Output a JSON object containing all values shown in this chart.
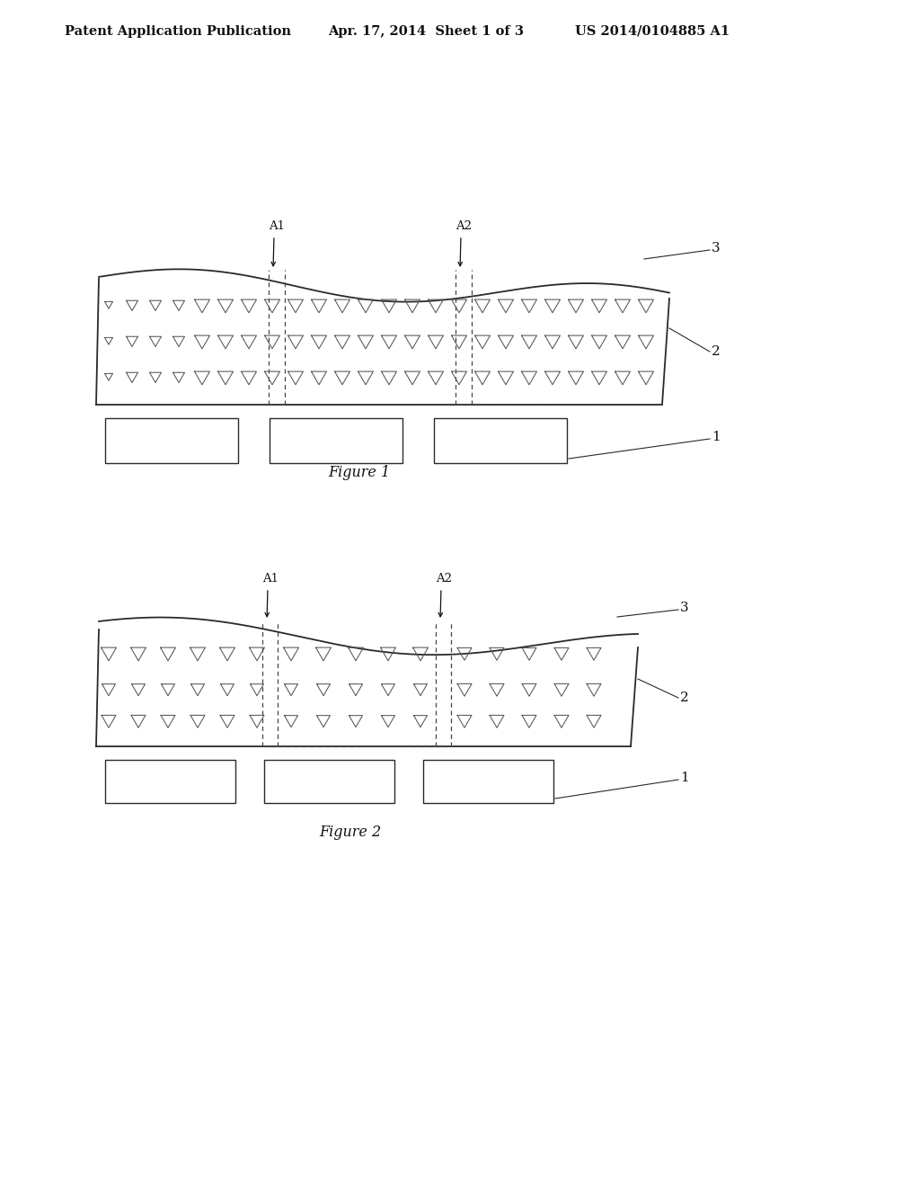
{
  "header_left": "Patent Application Publication",
  "header_mid": "Apr. 17, 2014  Sheet 1 of 3",
  "header_right": "US 2014/0104885 A1",
  "fig1_title": "Figure 1",
  "fig2_title": "Figure 2",
  "bg_color": "#ffffff",
  "line_color": "#2a2a2a",
  "dashed_color": "#444444"
}
